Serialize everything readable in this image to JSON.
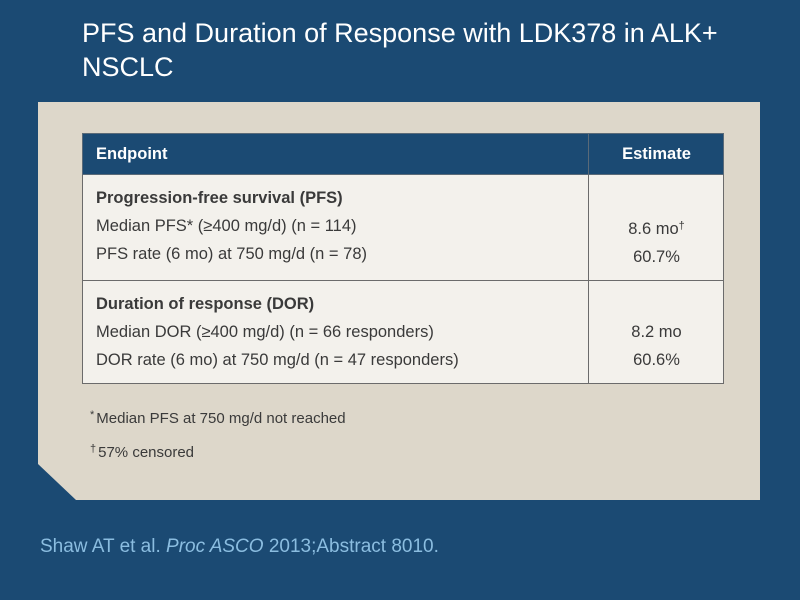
{
  "slide": {
    "title": "PFS and Duration of Response with LDK378 in ALK+ NSCLC"
  },
  "table": {
    "headers": {
      "endpoint": "Endpoint",
      "estimate": "Estimate"
    },
    "sections": [
      {
        "title": "Progression-free survival (PFS)",
        "rows": [
          {
            "label": "Median PFS* (≥400 mg/d) (n = 114)",
            "value": "8.6 mo",
            "mark": "†"
          },
          {
            "label": "PFS rate (6 mo) at 750 mg/d (n = 78)",
            "value": "60.7%"
          }
        ]
      },
      {
        "title": "Duration of response (DOR)",
        "rows": [
          {
            "label": "Median DOR (≥400 mg/d) (n = 66 responders)",
            "value": "8.2 mo"
          },
          {
            "label": "DOR rate (6 mo) at 750 mg/d (n = 47 responders)",
            "value": "60.6%"
          }
        ]
      }
    ]
  },
  "footnotes": [
    {
      "mark": "*",
      "text": "Median PFS at 750 mg/d not reached"
    },
    {
      "mark": "†",
      "text": "57% censored"
    }
  ],
  "citation": {
    "authors": "Shaw AT et al.",
    "journal": "Proc ASCO",
    "details": "2013;Abstract 8010."
  },
  "colors": {
    "background": "#1b4a73",
    "panel": "#ddd7ca",
    "table_header": "#1b4a73",
    "citation_text": "#8bbde0"
  }
}
